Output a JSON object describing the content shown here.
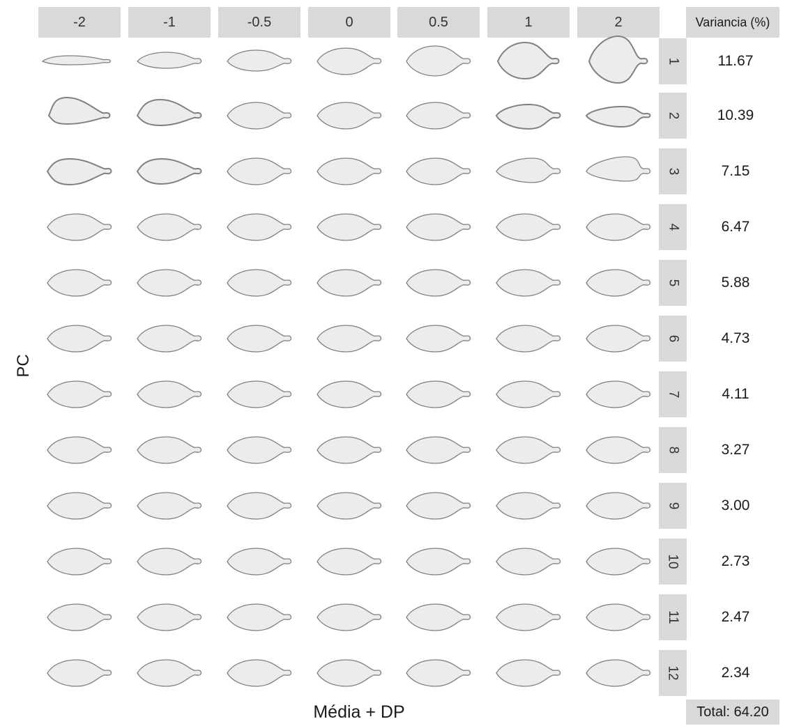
{
  "figure": {
    "columns": [
      "-2",
      "-1",
      "-0.5",
      "0",
      "0.5",
      "1",
      "2"
    ],
    "rows": [
      {
        "pc": "1",
        "variance": "11.67"
      },
      {
        "pc": "2",
        "variance": "10.39"
      },
      {
        "pc": "3",
        "variance": "7.15"
      },
      {
        "pc": "4",
        "variance": "6.47"
      },
      {
        "pc": "5",
        "variance": "5.88"
      },
      {
        "pc": "6",
        "variance": "4.73"
      },
      {
        "pc": "7",
        "variance": "4.11"
      },
      {
        "pc": "8",
        "variance": "3.27"
      },
      {
        "pc": "9",
        "variance": "3.00"
      },
      {
        "pc": "10",
        "variance": "2.73"
      },
      {
        "pc": "11",
        "variance": "2.47"
      },
      {
        "pc": "12",
        "variance": "2.34"
      }
    ],
    "variance_header": "Variancia (%)",
    "total_label": "Total: 64.20",
    "x_axis_label": "Média + DP",
    "y_axis_label": "PC",
    "shape_fill": "#ececec",
    "shape_stroke": "#808080",
    "strip_color": "#d9d9d9"
  }
}
